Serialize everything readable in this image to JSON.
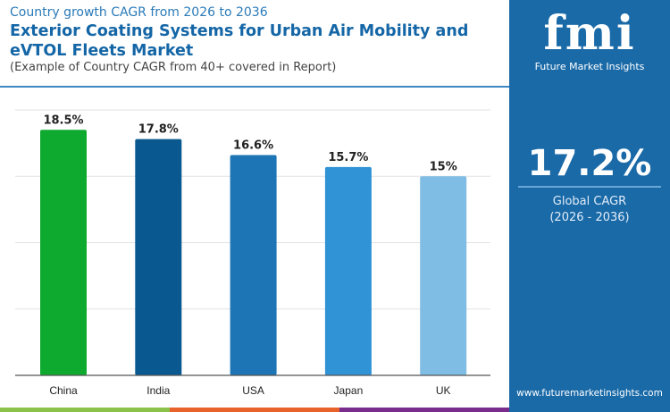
{
  "header": {
    "subtitle": "Country growth CAGR from 2026 to 2036",
    "title": "Exterior Coating Systems for Urban Air Mobility and eVTOL Fleets Market",
    "note": "(Example of Country CAGR from 40+ covered in Report)"
  },
  "side": {
    "logo_text": "fmi",
    "logo_sub": "Future Market Insights",
    "value": "17.2%",
    "label": "Global CAGR",
    "period": "(2026 - 2036)",
    "url": "www.futuremarketinsights.com",
    "bg": "#1a6aa8"
  },
  "footer_colors": [
    "#8bc34a",
    "#e8622c",
    "#7b2d8e"
  ],
  "chart_data": {
    "type": "bar",
    "categories": [
      "China",
      "India",
      "USA",
      "Japan",
      "UK"
    ],
    "values": [
      18.5,
      17.8,
      16.6,
      15.7,
      15
    ],
    "labels": [
      "18.5%",
      "17.8%",
      "16.6%",
      "15.7%",
      "15%"
    ],
    "colors": [
      "#0eaa2f",
      "#0a5890",
      "#1d75b5",
      "#2f93d6",
      "#80bde4"
    ],
    "ylim": [
      0,
      20
    ],
    "grid": true,
    "title": "",
    "xlabel": "",
    "ylabel": ""
  }
}
